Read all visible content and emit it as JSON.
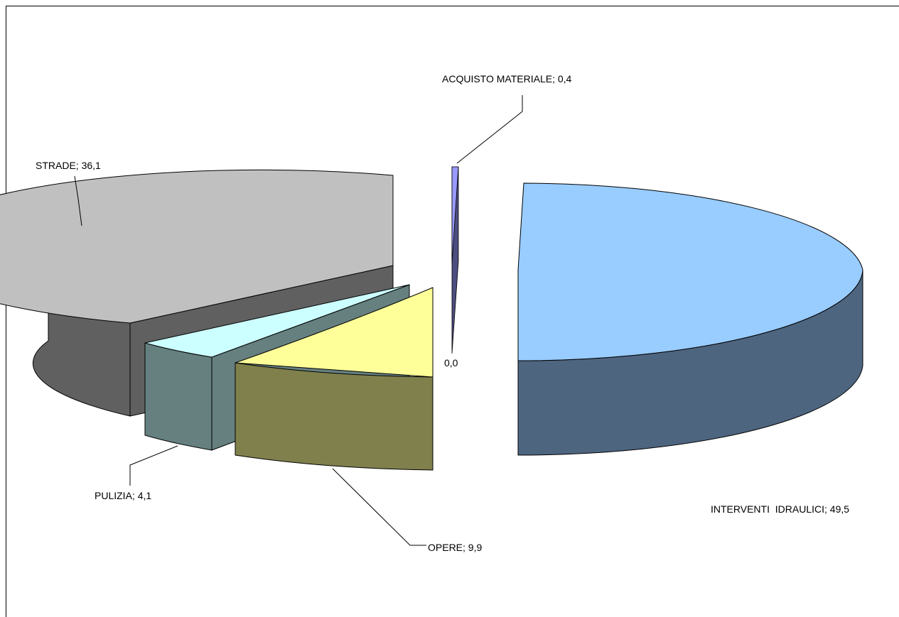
{
  "chart_data": {
    "type": "pie",
    "style": "3d-exploded",
    "title": "",
    "slices": [
      {
        "label": "INTERVENTI  IDRAULICI",
        "value": 49.5,
        "value_text": "49,5",
        "top_color": "#99CCFF",
        "side_color": "#4E6580"
      },
      {
        "label": "ACQUISTO MATERIALE",
        "value": 0.4,
        "value_text": "0,4",
        "top_color": "#9999FF",
        "side_color": "#4D4D80"
      },
      {
        "label": "",
        "value": 0.0,
        "value_text": "0,0",
        "top_color": "#FFFFFF",
        "side_color": "#808080"
      },
      {
        "label": "OPERE",
        "value": 9.9,
        "value_text": "9,9",
        "top_color": "#FFFF99",
        "side_color": "#80804D"
      },
      {
        "label": "PULIZIA",
        "value": 4.1,
        "value_text": "4,1",
        "top_color": "#CCFFFF",
        "side_color": "#668080"
      },
      {
        "label": "STRADE",
        "value": 36.1,
        "value_text": "36,1",
        "top_color": "#C0C0C0",
        "side_color": "#606060"
      }
    ]
  }
}
